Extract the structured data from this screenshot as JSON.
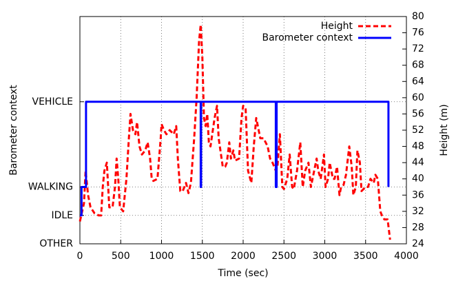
{
  "chart_data": {
    "type": "line",
    "x_label": "Time (sec)",
    "y_label": "Barometer context",
    "y2_label": "Height (m)",
    "xlim": [
      0,
      4000
    ],
    "xticks": [
      0,
      500,
      1000,
      1500,
      2000,
      2500,
      3000,
      3500,
      4000
    ],
    "ylim": [
      0,
      8
    ],
    "yticks": [
      {
        "value": 0,
        "label": "OTHER"
      },
      {
        "value": 1,
        "label": "IDLE"
      },
      {
        "value": 2,
        "label": "WALKING"
      },
      {
        "value": 5,
        "label": "VEHICLE"
      }
    ],
    "y2lim": [
      24,
      80
    ],
    "y2ticks": [
      24,
      28,
      32,
      36,
      40,
      44,
      48,
      52,
      56,
      60,
      64,
      68,
      72,
      76,
      80
    ],
    "grid": true,
    "legend": "top-right",
    "series": [
      {
        "name": "Height",
        "color": "#ff0000",
        "dashed": true,
        "axis": "y2",
        "x": [
          0,
          50,
          70,
          100,
          130,
          180,
          230,
          260,
          280,
          300,
          330,
          360,
          400,
          430,
          450,
          470,
          490,
          530,
          570,
          600,
          620,
          650,
          680,
          700,
          730,
          760,
          800,
          830,
          860,
          880,
          900,
          950,
          990,
          1000,
          1030,
          1060,
          1100,
          1150,
          1180,
          1200,
          1230,
          1260,
          1300,
          1330,
          1360,
          1400,
          1430,
          1460,
          1480,
          1500,
          1520,
          1540,
          1560,
          1580,
          1600,
          1650,
          1680,
          1700,
          1750,
          1780,
          1800,
          1830,
          1850,
          1880,
          1900,
          1950,
          1980,
          2000,
          2030,
          2060,
          2100,
          2130,
          2160,
          2190,
          2210,
          2250,
          2300,
          2330,
          2360,
          2400,
          2420,
          2450,
          2480,
          2500,
          2540,
          2570,
          2600,
          2620,
          2660,
          2700,
          2730,
          2760,
          2800,
          2830,
          2860,
          2900,
          2920,
          2950,
          2990,
          3010,
          3040,
          3060,
          3100,
          3120,
          3150,
          3180,
          3200,
          3230,
          3260,
          3300,
          3330,
          3350,
          3380,
          3400,
          3430,
          3450,
          3500,
          3530,
          3560,
          3600,
          3620,
          3650,
          3680,
          3700,
          3730,
          3770,
          3800
        ],
        "values": [
          29.5,
          34,
          42,
          36,
          33,
          31.5,
          31,
          31,
          38,
          42,
          44,
          33,
          33,
          38,
          45,
          40,
          33,
          32,
          40,
          50,
          56,
          52,
          51,
          54,
          48,
          46,
          47,
          49,
          45,
          40,
          39.5,
          40,
          50,
          53.5,
          52,
          51,
          52,
          51,
          53,
          45,
          37,
          37,
          39,
          36.5,
          39,
          50,
          60,
          74,
          78,
          70,
          55,
          53,
          56,
          49,
          48,
          55,
          58,
          50,
          43,
          43,
          44,
          49,
          45,
          47,
          44.5,
          45,
          55,
          58,
          57.5,
          42,
          39,
          48,
          55,
          52,
          50,
          50,
          48,
          45,
          44,
          42,
          43,
          51,
          38,
          37.5,
          40,
          46,
          38,
          37.5,
          42,
          49,
          38,
          42,
          44,
          38,
          41,
          45,
          42,
          40,
          46,
          38,
          40,
          44,
          40,
          40,
          43,
          36,
          38,
          38.5,
          41,
          48,
          43,
          36,
          38,
          47,
          44,
          37,
          38,
          38,
          40,
          39,
          41,
          40,
          32,
          31,
          30,
          30,
          25
        ]
      },
      {
        "name": "Barometer context",
        "color": "#0000ff",
        "dashed": false,
        "axis": "y",
        "x": [
          0,
          20,
          20,
          75,
          75,
          1480,
          1480,
          1485,
          1485,
          2400,
          2400,
          2410,
          2410,
          3780,
          3780
        ],
        "values": [
          1,
          1,
          2,
          2,
          5,
          5,
          2,
          2,
          5,
          5,
          2,
          2,
          5,
          5,
          2
        ]
      }
    ]
  }
}
